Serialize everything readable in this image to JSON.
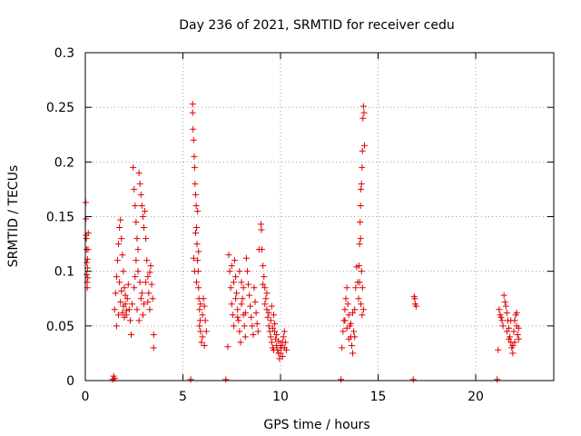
{
  "chart_data": {
    "type": "scatter",
    "title": "Day 236 of 2021, SRMTID for receiver cedu",
    "xlabel": "GPS time / hours",
    "ylabel": "SRMTID / TECUs",
    "xlim": [
      0,
      24
    ],
    "ylim": [
      0,
      0.3
    ],
    "xticks": [
      0,
      5,
      10,
      15,
      20
    ],
    "xtick_labels": [
      "0",
      "5",
      "10",
      "15",
      "20"
    ],
    "yticks": [
      0,
      0.05,
      0.1,
      0.15,
      0.2,
      0.25,
      0.3
    ],
    "ytick_labels": [
      "0",
      "0.05",
      "0.1",
      "0.15",
      "0.2",
      "0.25",
      "0.3"
    ],
    "grid": true,
    "marker": "+",
    "colors": {
      "series": "#e00000",
      "grid": "#a0a0a0",
      "axis": "#000000"
    },
    "series": [
      {
        "name": "SRMTID",
        "points": [
          [
            0.02,
            0.163
          ],
          [
            0.03,
            0.148
          ],
          [
            0.04,
            0.133
          ],
          [
            0.06,
            0.12
          ],
          [
            0.07,
            0.108
          ],
          [
            0.08,
            0.097
          ],
          [
            0.09,
            0.09
          ],
          [
            0.1,
            0.085
          ],
          [
            0.05,
            0.13
          ],
          [
            0.11,
            0.111
          ],
          [
            0.12,
            0.103
          ],
          [
            0.13,
            0.094
          ],
          [
            0.14,
            0.12
          ],
          [
            0.15,
            0.135
          ],
          [
            1.4,
            0.001
          ],
          [
            1.45,
            0.004
          ],
          [
            1.5,
            0.002
          ],
          [
            1.5,
            0.065
          ],
          [
            1.55,
            0.08
          ],
          [
            1.6,
            0.095
          ],
          [
            1.65,
            0.11
          ],
          [
            1.7,
            0.125
          ],
          [
            1.75,
            0.14
          ],
          [
            1.8,
            0.147
          ],
          [
            1.85,
            0.13
          ],
          [
            1.9,
            0.115
          ],
          [
            1.95,
            0.1
          ],
          [
            2.0,
            0.085
          ],
          [
            2.05,
            0.07
          ],
          [
            2.1,
            0.06
          ],
          [
            2.15,
            0.075
          ],
          [
            2.2,
            0.088
          ],
          [
            2.25,
            0.065
          ],
          [
            2.3,
            0.055
          ],
          [
            2.35,
            0.042
          ],
          [
            2.4,
            0.07
          ],
          [
            1.6,
            0.05
          ],
          [
            1.7,
            0.06
          ],
          [
            1.8,
            0.072
          ],
          [
            1.9,
            0.062
          ],
          [
            2.0,
            0.058
          ],
          [
            2.1,
            0.064
          ],
          [
            1.75,
            0.09
          ],
          [
            1.85,
            0.082
          ],
          [
            1.95,
            0.068
          ],
          [
            2.05,
            0.078
          ],
          [
            2.45,
            0.195
          ],
          [
            2.5,
            0.175
          ],
          [
            2.55,
            0.16
          ],
          [
            2.6,
            0.145
          ],
          [
            2.65,
            0.13
          ],
          [
            2.7,
            0.12
          ],
          [
            2.75,
            0.19
          ],
          [
            2.8,
            0.18
          ],
          [
            2.85,
            0.17
          ],
          [
            2.9,
            0.16
          ],
          [
            2.95,
            0.15
          ],
          [
            3.0,
            0.14
          ],
          [
            2.6,
            0.11
          ],
          [
            2.7,
            0.1
          ],
          [
            2.8,
            0.09
          ],
          [
            2.9,
            0.08
          ],
          [
            3.0,
            0.07
          ],
          [
            2.5,
            0.085
          ],
          [
            2.65,
            0.065
          ],
          [
            2.75,
            0.055
          ],
          [
            2.55,
            0.095
          ],
          [
            2.85,
            0.075
          ],
          [
            2.95,
            0.06
          ],
          [
            3.05,
            0.155
          ],
          [
            3.1,
            0.13
          ],
          [
            3.15,
            0.11
          ],
          [
            3.2,
            0.095
          ],
          [
            3.25,
            0.08
          ],
          [
            3.3,
            0.065
          ],
          [
            3.35,
            0.105
          ],
          [
            3.4,
            0.088
          ],
          [
            3.45,
            0.075
          ],
          [
            3.5,
            0.042
          ],
          [
            3.5,
            0.03
          ],
          [
            3.1,
            0.09
          ],
          [
            3.2,
            0.072
          ],
          [
            3.3,
            0.099
          ],
          [
            5.4,
            0.001
          ],
          [
            5.5,
            0.253
          ],
          [
            5.5,
            0.245
          ],
          [
            5.52,
            0.23
          ],
          [
            5.55,
            0.22
          ],
          [
            5.58,
            0.205
          ],
          [
            5.6,
            0.195
          ],
          [
            5.62,
            0.18
          ],
          [
            5.65,
            0.17
          ],
          [
            5.68,
            0.16
          ],
          [
            5.7,
            0.14
          ],
          [
            5.72,
            0.125
          ],
          [
            5.75,
            0.11
          ],
          [
            5.78,
            0.1
          ],
          [
            5.8,
            0.085
          ],
          [
            5.82,
            0.075
          ],
          [
            5.85,
            0.065
          ],
          [
            5.88,
            0.055
          ],
          [
            5.9,
            0.045
          ],
          [
            5.95,
            0.035
          ],
          [
            6.0,
            0.06
          ],
          [
            6.05,
            0.075
          ],
          [
            6.1,
            0.068
          ],
          [
            6.15,
            0.055
          ],
          [
            6.2,
            0.045
          ],
          [
            5.6,
            0.1
          ],
          [
            5.7,
            0.09
          ],
          [
            5.8,
            0.118
          ],
          [
            5.9,
            0.07
          ],
          [
            6.0,
            0.04
          ],
          [
            5.65,
            0.135
          ],
          [
            5.75,
            0.155
          ],
          [
            6.1,
            0.032
          ],
          [
            5.55,
            0.112
          ],
          [
            5.85,
            0.05
          ],
          [
            7.2,
            0.001
          ],
          [
            7.3,
            0.031
          ],
          [
            7.35,
            0.115
          ],
          [
            7.4,
            0.1
          ],
          [
            7.45,
            0.085
          ],
          [
            7.5,
            0.07
          ],
          [
            7.55,
            0.06
          ],
          [
            7.6,
            0.05
          ],
          [
            7.65,
            0.11
          ],
          [
            7.7,
            0.095
          ],
          [
            7.75,
            0.08
          ],
          [
            7.8,
            0.065
          ],
          [
            7.85,
            0.055
          ],
          [
            7.9,
            0.045
          ],
          [
            7.95,
            0.035
          ],
          [
            8.0,
            0.09
          ],
          [
            8.05,
            0.075
          ],
          [
            8.1,
            0.06
          ],
          [
            8.15,
            0.05
          ],
          [
            8.2,
            0.04
          ],
          [
            7.5,
            0.105
          ],
          [
            7.6,
            0.09
          ],
          [
            7.7,
            0.075
          ],
          [
            7.8,
            0.058
          ],
          [
            7.9,
            0.1
          ],
          [
            8.0,
            0.07
          ],
          [
            8.1,
            0.085
          ],
          [
            8.2,
            0.062
          ],
          [
            8.25,
            0.112
          ],
          [
            8.3,
            0.1
          ],
          [
            8.35,
            0.088
          ],
          [
            8.4,
            0.078
          ],
          [
            8.45,
            0.068
          ],
          [
            8.5,
            0.058
          ],
          [
            8.55,
            0.05
          ],
          [
            8.6,
            0.042
          ],
          [
            8.65,
            0.085
          ],
          [
            8.7,
            0.072
          ],
          [
            8.75,
            0.062
          ],
          [
            8.8,
            0.052
          ],
          [
            8.85,
            0.045
          ],
          [
            8.9,
            0.12
          ],
          [
            9.0,
            0.143
          ],
          [
            9.02,
            0.138
          ],
          [
            9.05,
            0.12
          ],
          [
            9.1,
            0.105
          ],
          [
            9.15,
            0.095
          ],
          [
            9.2,
            0.085
          ],
          [
            9.25,
            0.075
          ],
          [
            9.3,
            0.065
          ],
          [
            9.35,
            0.058
          ],
          [
            9.4,
            0.05
          ],
          [
            9.45,
            0.045
          ],
          [
            9.5,
            0.04
          ],
          [
            9.55,
            0.035
          ],
          [
            9.6,
            0.03
          ],
          [
            9.65,
            0.028
          ],
          [
            9.7,
            0.045
          ],
          [
            9.75,
            0.038
          ],
          [
            9.8,
            0.032
          ],
          [
            9.85,
            0.028
          ],
          [
            9.9,
            0.025
          ],
          [
            9.95,
            0.02
          ],
          [
            10.0,
            0.025
          ],
          [
            10.05,
            0.03
          ],
          [
            10.1,
            0.035
          ],
          [
            10.15,
            0.04
          ],
          [
            10.2,
            0.045
          ],
          [
            10.25,
            0.035
          ],
          [
            10.3,
            0.028
          ],
          [
            9.5,
            0.055
          ],
          [
            9.6,
            0.048
          ],
          [
            9.7,
            0.052
          ],
          [
            9.8,
            0.042
          ],
          [
            9.9,
            0.036
          ],
          [
            10.0,
            0.032
          ],
          [
            10.1,
            0.022
          ],
          [
            10.2,
            0.03
          ],
          [
            9.1,
            0.088
          ],
          [
            9.2,
            0.07
          ],
          [
            9.3,
            0.08
          ],
          [
            9.4,
            0.062
          ],
          [
            9.55,
            0.068
          ],
          [
            9.65,
            0.06
          ],
          [
            13.1,
            0.001
          ],
          [
            13.15,
            0.03
          ],
          [
            13.2,
            0.045
          ],
          [
            13.25,
            0.055
          ],
          [
            13.3,
            0.065
          ],
          [
            13.35,
            0.075
          ],
          [
            13.4,
            0.085
          ],
          [
            13.45,
            0.07
          ],
          [
            13.5,
            0.06
          ],
          [
            13.55,
            0.05
          ],
          [
            13.6,
            0.04
          ],
          [
            13.65,
            0.032
          ],
          [
            13.7,
            0.025
          ],
          [
            13.75,
            0.045
          ],
          [
            13.8,
            0.065
          ],
          [
            13.85,
            0.085
          ],
          [
            13.9,
            0.104
          ],
          [
            13.95,
            0.09
          ],
          [
            13.3,
            0.055
          ],
          [
            13.4,
            0.048
          ],
          [
            13.5,
            0.038
          ],
          [
            13.6,
            0.052
          ],
          [
            13.7,
            0.062
          ],
          [
            13.8,
            0.04
          ],
          [
            14.0,
            0.075
          ],
          [
            14.02,
            0.105
          ],
          [
            14.05,
            0.125
          ],
          [
            14.08,
            0.145
          ],
          [
            14.1,
            0.16
          ],
          [
            14.12,
            0.175
          ],
          [
            14.15,
            0.18
          ],
          [
            14.18,
            0.195
          ],
          [
            14.2,
            0.21
          ],
          [
            14.22,
            0.24
          ],
          [
            14.25,
            0.251
          ],
          [
            14.28,
            0.245
          ],
          [
            14.3,
            0.215
          ],
          [
            14.1,
            0.13
          ],
          [
            14.15,
            0.1
          ],
          [
            14.2,
            0.085
          ],
          [
            14.25,
            0.065
          ],
          [
            14.05,
            0.09
          ],
          [
            14.12,
            0.07
          ],
          [
            14.18,
            0.06
          ],
          [
            16.8,
            0.001
          ],
          [
            16.85,
            0.077
          ],
          [
            16.88,
            0.075
          ],
          [
            16.9,
            0.07
          ],
          [
            16.95,
            0.068
          ],
          [
            21.1,
            0.001
          ],
          [
            21.15,
            0.028
          ],
          [
            21.2,
            0.065
          ],
          [
            21.25,
            0.06
          ],
          [
            21.3,
            0.058
          ],
          [
            21.35,
            0.055
          ],
          [
            21.4,
            0.05
          ],
          [
            21.45,
            0.078
          ],
          [
            21.5,
            0.072
          ],
          [
            21.55,
            0.068
          ],
          [
            21.6,
            0.062
          ],
          [
            21.65,
            0.055
          ],
          [
            21.7,
            0.048
          ],
          [
            21.75,
            0.04
          ],
          [
            21.8,
            0.035
          ],
          [
            21.85,
            0.03
          ],
          [
            21.9,
            0.025
          ],
          [
            21.95,
            0.045
          ],
          [
            22.0,
            0.055
          ],
          [
            22.05,
            0.06
          ],
          [
            22.1,
            0.05
          ],
          [
            22.15,
            0.042
          ],
          [
            22.2,
            0.038
          ],
          [
            21.6,
            0.045
          ],
          [
            21.7,
            0.038
          ],
          [
            21.8,
            0.055
          ],
          [
            21.9,
            0.032
          ],
          [
            22.0,
            0.035
          ],
          [
            22.1,
            0.062
          ],
          [
            22.2,
            0.048
          ]
        ]
      }
    ]
  }
}
